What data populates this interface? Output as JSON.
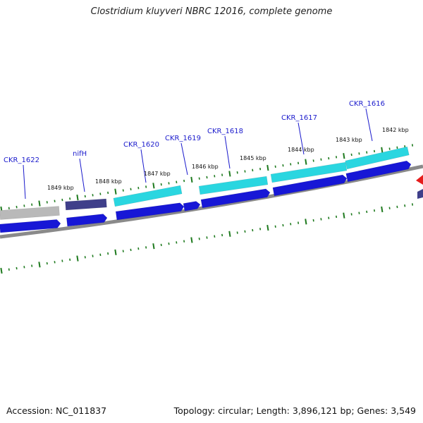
{
  "title": "Clostridium kluyveri NBRC 12016, complete genome",
  "footer": {
    "accession": "Accession: NC_011837",
    "summary": "Topology: circular; Length: 3,896,121 bp; Genes: 3,549"
  },
  "colors": {
    "background": "#ffffff",
    "label": "#1a1acc",
    "tick": "#1e7a1e",
    "backbone": "#8a8a8a",
    "cds": "#1717d6",
    "cyan_feature": "#2ad6e0",
    "gray_feature": "#b9b9b9",
    "nifH_feature": "#3f3f8a",
    "red_feature": "#e61c1c"
  },
  "scale_labels": [
    "1849 kbp",
    "1848 kbp",
    "1847 kbp",
    "1846 kbp",
    "1845 kbp",
    "1844 kbp",
    "1843 kbp",
    "1842 kbp"
  ],
  "gene_labels": [
    "CKR_1622",
    "nifH",
    "CKR_1620",
    "CKR_1619",
    "CKR_1618",
    "CKR_1617",
    "CKR_1616"
  ]
}
